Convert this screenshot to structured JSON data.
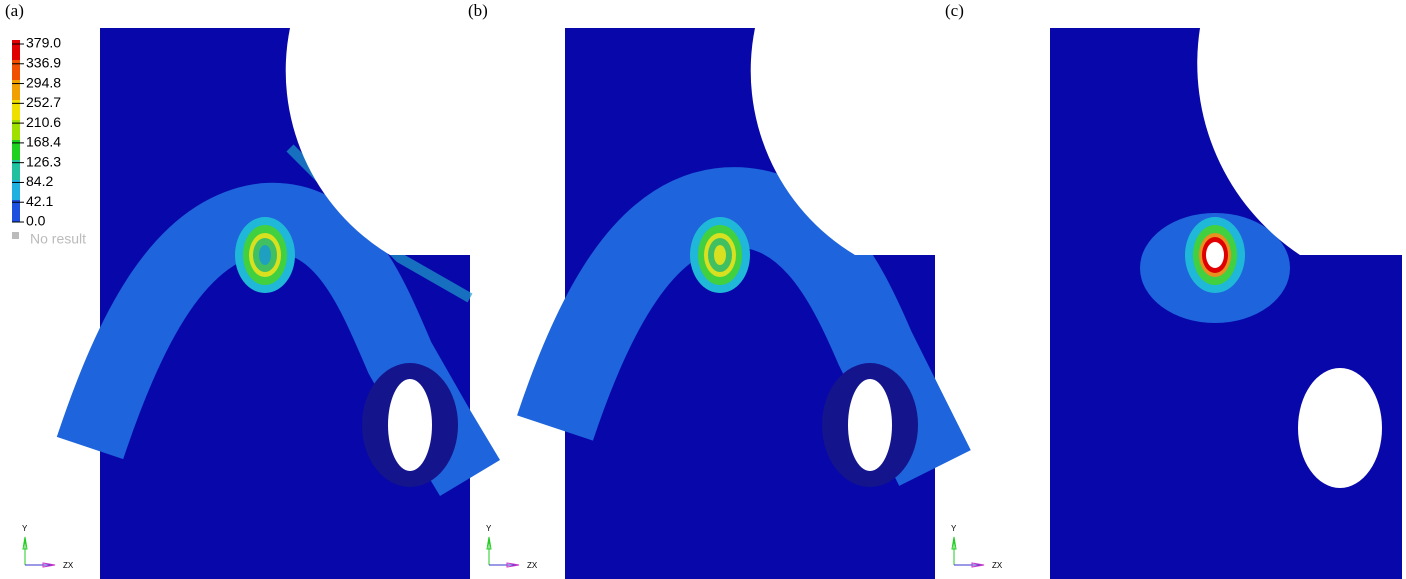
{
  "panels": [
    {
      "label": "(a)"
    },
    {
      "label": "(b)"
    },
    {
      "label": "(c)"
    }
  ],
  "legend": {
    "levels": [
      "379.0",
      "336.9",
      "294.8",
      "252.7",
      "210.6",
      "168.4",
      "126.3",
      "84.2",
      "42.1",
      "0.0"
    ],
    "no_result": "No result"
  },
  "triad": {
    "y": "Y",
    "zx": "ZX"
  }
}
